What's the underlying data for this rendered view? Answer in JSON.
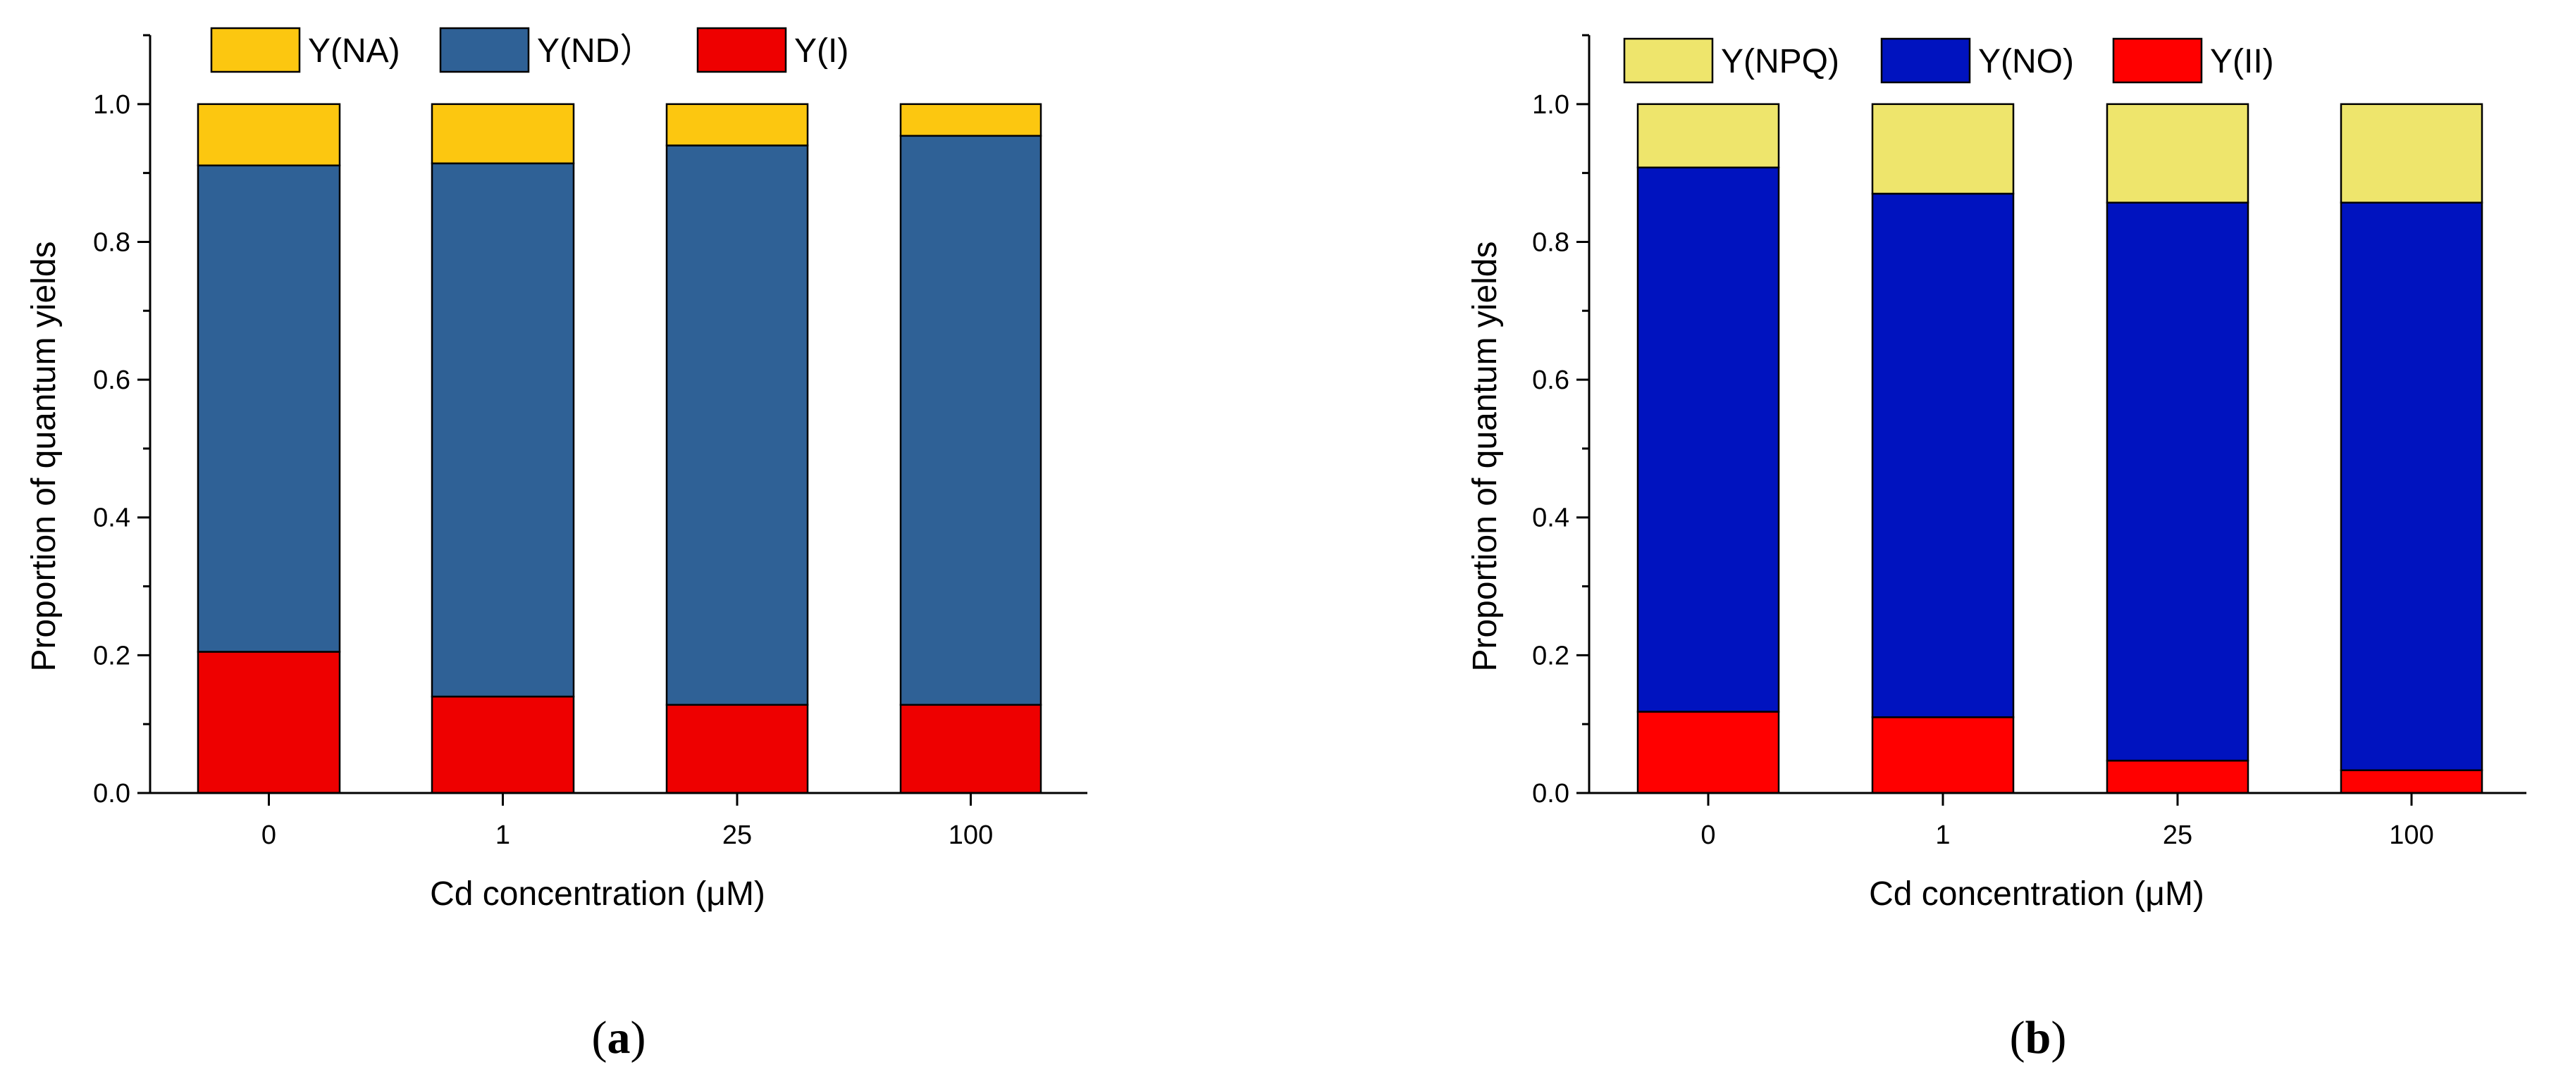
{
  "chart_data": [
    {
      "type": "bar",
      "stacked": true,
      "panel_label": "a",
      "categories": [
        "0",
        "1",
        "25",
        "100"
      ],
      "xlabel": "Cd concentration (μM)",
      "ylabel": "Proportion of quantum yields",
      "ylim": [
        0,
        1.1
      ],
      "yticks": [
        "0.0",
        "0.2",
        "0.4",
        "0.6",
        "0.8",
        "1.0"
      ],
      "series": [
        {
          "name": "Y(I)",
          "color": "#ee0000",
          "values": [
            0.205,
            0.14,
            0.128,
            0.128
          ]
        },
        {
          "name": "Y(ND）",
          "color": "#2f6196",
          "values": [
            0.706,
            0.774,
            0.812,
            0.826
          ]
        },
        {
          "name": "Y(NA)",
          "color": "#fcc710",
          "values": [
            0.089,
            0.086,
            0.06,
            0.046
          ]
        }
      ],
      "legend_order": [
        "Y(NA)",
        "Y(ND）",
        "Y(I)"
      ],
      "legend_position": "top"
    },
    {
      "type": "bar",
      "stacked": true,
      "panel_label": "b",
      "categories": [
        "0",
        "1",
        "25",
        "100"
      ],
      "xlabel": "Cd concentration (μM)",
      "ylabel": "Proportion of quantum yields",
      "ylim": [
        0,
        1.1
      ],
      "yticks": [
        "0.0",
        "0.2",
        "0.4",
        "0.6",
        "0.8",
        "1.0"
      ],
      "series": [
        {
          "name": "Y(II)",
          "color": "#ff0000",
          "values": [
            0.118,
            0.11,
            0.047,
            0.033
          ]
        },
        {
          "name": "Y(NO)",
          "color": "#0013bf",
          "values": [
            0.79,
            0.76,
            0.81,
            0.824
          ]
        },
        {
          "name": "Y(NPQ)",
          "color": "#eee56c",
          "values": [
            0.092,
            0.13,
            0.143,
            0.143
          ]
        }
      ],
      "legend_order": [
        "Y(NPQ)",
        "Y(NO)",
        "Y(II)"
      ],
      "legend_position": "top"
    }
  ]
}
